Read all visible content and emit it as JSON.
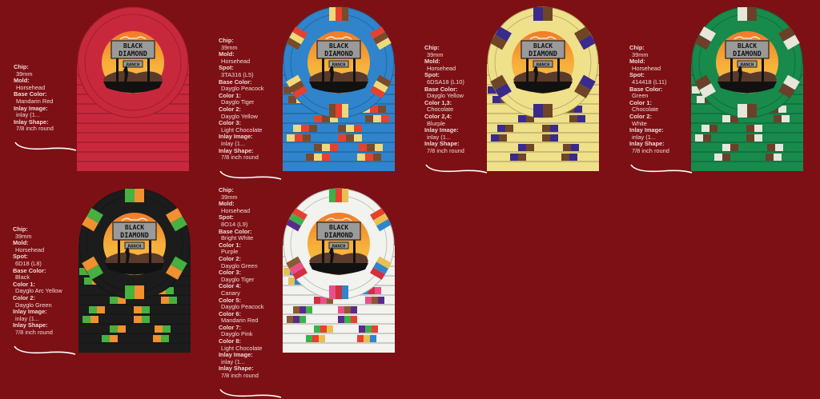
{
  "logo": {
    "line1": "BLACK",
    "line2": "DIAMOND",
    "line3": "RANCH"
  },
  "chips": [
    {
      "id": "mandarin-red",
      "base": "#c8283c",
      "spots": [],
      "spec": [
        [
          "Chip:",
          "39mm"
        ],
        [
          "Mold:",
          "Horsehead"
        ],
        [
          "Base Color:",
          "Mandarin Red"
        ],
        [
          "Inlay Image:",
          "inlay (1..."
        ],
        [
          "Inlay Shape:",
          "7/8 inch round"
        ]
      ]
    },
    {
      "id": "daygilo-peacock",
      "base": "#2f84cc",
      "spots": [
        "#7b4a2a",
        "#efd97a",
        "#e8402e"
      ],
      "spec": [
        [
          "Chip:",
          "39mm"
        ],
        [
          "Mold:",
          "Horsehead"
        ],
        [
          "Spot:",
          "3TA316 (L5)"
        ],
        [
          "Base Color:",
          "Dayglo Peacock"
        ],
        [
          "Color 1:",
          "Dayglo Tiger"
        ],
        [
          "Color 2:",
          "Dayglo Yellow"
        ],
        [
          "Color 3:",
          "Light Chocolate"
        ],
        [
          "Inlay Image:",
          "inlay (1..."
        ],
        [
          "Inlay Shape:",
          "7/8 inch round"
        ]
      ]
    },
    {
      "id": "dayglo-yellow",
      "base": "#efe08a",
      "spots": [
        "#6e4526",
        "#3a2a8c"
      ],
      "spec": [
        [
          "Chip:",
          "39mm"
        ],
        [
          "Mold:",
          "Horsehead"
        ],
        [
          "Spot:",
          "6DSA18 (L10)"
        ],
        [
          "Base Color:",
          "Dayglo Yellow"
        ],
        [
          "Color 1,3:",
          "Chocolate"
        ],
        [
          "Color 2,4:",
          "Blurple"
        ],
        [
          "Inlay Image:",
          "inlay (1..."
        ],
        [
          "Inlay Shape:",
          "7/8 inch round"
        ]
      ]
    },
    {
      "id": "green",
      "base": "#178a4c",
      "spots": [
        "#6b4028",
        "#e6e6da"
      ],
      "spec": [
        [
          "Chip:",
          "39mm"
        ],
        [
          "Mold:",
          "Horsehead"
        ],
        [
          "Spot:",
          "414418 (L11)"
        ],
        [
          "Base Color:",
          "Green"
        ],
        [
          "Color 1:",
          "Chocolate"
        ],
        [
          "Color 2:",
          "White"
        ],
        [
          "Inlay Image:",
          "inlay (1..."
        ],
        [
          "Inlay Shape:",
          "7/8 inch round"
        ]
      ]
    },
    {
      "id": "black",
      "base": "#1c1c1c",
      "spots": [
        "#f09030",
        "#46b040"
      ],
      "spec": [
        [
          "Chip:",
          "39mm"
        ],
        [
          "Mold:",
          "Horsehead"
        ],
        [
          "Spot:",
          "6D18 (L8)"
        ],
        [
          "Base Color:",
          "Black"
        ],
        [
          "Color 1:",
          "Dayglo Arc Yellow"
        ],
        [
          "Color 2:",
          "Dayglo Green"
        ],
        [
          "Inlay Image:",
          "inlay (1..."
        ],
        [
          "Inlay Shape:",
          "7/8 inch round"
        ]
      ]
    },
    {
      "id": "bright-white",
      "base": "#f2f2ee",
      "spots": [
        "#5a2a8a",
        "#3cb04a",
        "#e8402e",
        "#e8c050",
        "#2f84cc",
        "#d03040",
        "#e8508a",
        "#8a5a30"
      ],
      "spec": [
        [
          "Chip:",
          "39mm"
        ],
        [
          "Mold:",
          "Horsehead"
        ],
        [
          "Spot:",
          "8O14 (L9)"
        ],
        [
          "Base Color:",
          "Bright White"
        ],
        [
          "Color 1:",
          "Purple"
        ],
        [
          "Color 2:",
          "Dayglo Green"
        ],
        [
          "Color 3:",
          "Dayglo Tiger"
        ],
        [
          "Color 4:",
          "Canary"
        ],
        [
          "Color 5:",
          "Dayglo Peacock"
        ],
        [
          "Color 6:",
          "Mandarin Red"
        ],
        [
          "Color 7:",
          "Dayglo Pink"
        ],
        [
          "Color 8:",
          "Light Chocolate"
        ],
        [
          "Inlay Image:",
          "inlay (1..."
        ],
        [
          "Inlay Shape:",
          "7/8 inch round"
        ]
      ]
    }
  ]
}
